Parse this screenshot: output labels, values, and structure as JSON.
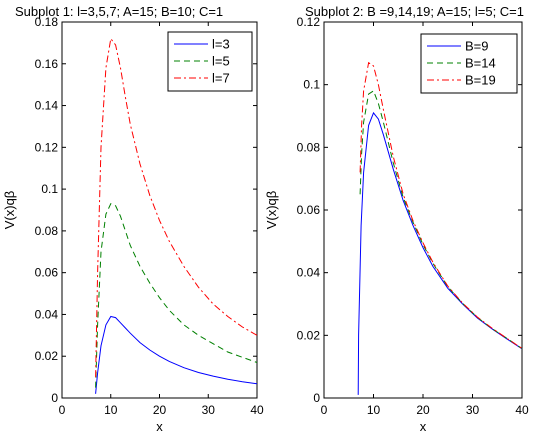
{
  "chart_data": [
    {
      "type": "line",
      "title": "Subplot 1: l=3,5,7; A=15; B=10; C=1",
      "xlabel": "x",
      "ylabel": "V(x)qβ",
      "xlim": [
        0,
        40
      ],
      "ylim": [
        0,
        0.18
      ],
      "xticks": [
        "0",
        "10",
        "20",
        "30",
        "40"
      ],
      "yticks": [
        "0",
        "0.02",
        "0.04",
        "0.06",
        "0.08",
        "0.1",
        "0.12",
        "0.14",
        "0.16",
        "0.18"
      ],
      "grid": false,
      "legend_position": "top-right",
      "series": [
        {
          "name": "l=3",
          "color": "#0000ff",
          "dash": "solid",
          "x": [
            6.9,
            7.3,
            8,
            9,
            10,
            11,
            12,
            13,
            14,
            16,
            18,
            20,
            22,
            25,
            28,
            31,
            34,
            37,
            40
          ],
          "y": [
            0.002,
            0.012,
            0.025,
            0.035,
            0.039,
            0.0385,
            0.036,
            0.0335,
            0.031,
            0.0265,
            0.023,
            0.02,
            0.0175,
            0.0145,
            0.0122,
            0.0105,
            0.009,
            0.0078,
            0.0068
          ]
        },
        {
          "name": "l=5",
          "color": "#008000",
          "dash": "dash",
          "x": [
            6.9,
            7.3,
            8,
            9,
            10,
            11,
            12,
            13,
            14,
            16,
            18,
            20,
            22,
            25,
            28,
            31,
            34,
            37,
            40
          ],
          "y": [
            0.005,
            0.035,
            0.07,
            0.088,
            0.093,
            0.092,
            0.087,
            0.08,
            0.073,
            0.063,
            0.055,
            0.048,
            0.042,
            0.035,
            0.03,
            0.026,
            0.022,
            0.0195,
            0.017
          ]
        },
        {
          "name": "l=7",
          "color": "#ff0000",
          "dash": "dashdot",
          "x": [
            6.9,
            7.3,
            8,
            9,
            10,
            11,
            12,
            13,
            14,
            16,
            18,
            20,
            22,
            25,
            28,
            31,
            34,
            37,
            40
          ],
          "y": [
            0.01,
            0.06,
            0.12,
            0.158,
            0.172,
            0.169,
            0.158,
            0.144,
            0.131,
            0.112,
            0.097,
            0.085,
            0.075,
            0.063,
            0.053,
            0.045,
            0.039,
            0.034,
            0.03
          ]
        }
      ]
    },
    {
      "type": "line",
      "title": "Subplot 2: B =9,14,19; A=15; l=5; C=1",
      "xlabel": "x",
      "ylabel": "V(x)qβ",
      "xlim": [
        0,
        40
      ],
      "ylim": [
        0,
        0.12
      ],
      "xticks": [
        "0",
        "10",
        "20",
        "30",
        "40"
      ],
      "yticks": [
        "0",
        "0.02",
        "0.04",
        "0.06",
        "0.08",
        "0.1",
        "0.12"
      ],
      "grid": false,
      "legend_position": "top-right",
      "series": [
        {
          "name": "B=9",
          "color": "#0000ff",
          "dash": "solid",
          "x": [
            6.9,
            7.0,
            7.5,
            8,
            9,
            10,
            11,
            12,
            14,
            16,
            18,
            20,
            22,
            25,
            28,
            31,
            34,
            37,
            40
          ],
          "y": [
            0.001,
            0.02,
            0.055,
            0.072,
            0.087,
            0.091,
            0.089,
            0.084,
            0.073,
            0.063,
            0.055,
            0.048,
            0.042,
            0.035,
            0.03,
            0.0255,
            0.022,
            0.0188,
            0.0157
          ]
        },
        {
          "name": "B=14",
          "color": "#008000",
          "dash": "dash",
          "x": [
            7.3,
            7.6,
            8,
            9,
            10,
            11,
            12,
            14,
            16,
            18,
            20,
            22,
            25,
            28,
            31,
            34,
            37,
            40
          ],
          "y": [
            0.065,
            0.078,
            0.088,
            0.097,
            0.098,
            0.094,
            0.088,
            0.075,
            0.064,
            0.056,
            0.049,
            0.043,
            0.0355,
            0.0302,
            0.0257,
            0.0221,
            0.019,
            0.0158
          ]
        },
        {
          "name": "B=19",
          "color": "#ff0000",
          "dash": "dashdot",
          "x": [
            7.3,
            7.6,
            8,
            9,
            10,
            11,
            12,
            14,
            16,
            18,
            20,
            22,
            25,
            28,
            31,
            34,
            37,
            40
          ],
          "y": [
            0.072,
            0.087,
            0.098,
            0.107,
            0.106,
            0.1,
            0.092,
            0.077,
            0.065,
            0.0565,
            0.0495,
            0.0433,
            0.0357,
            0.0303,
            0.0258,
            0.0222,
            0.019,
            0.0158
          ]
        }
      ]
    }
  ]
}
